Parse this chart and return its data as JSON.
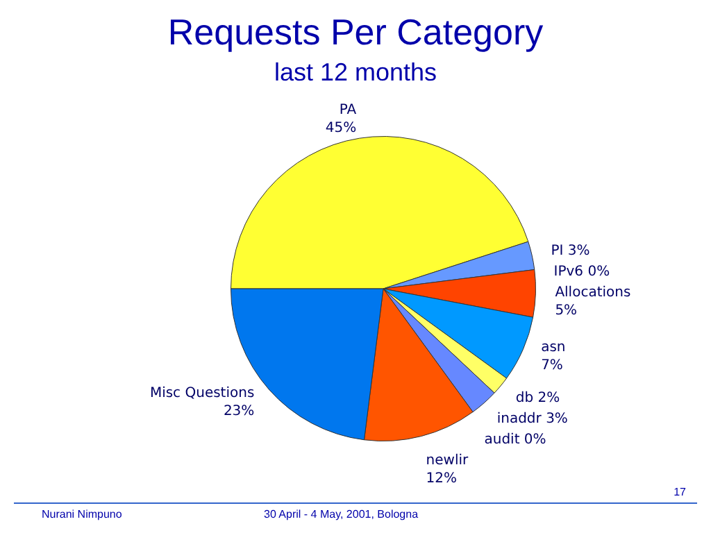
{
  "chart_data": {
    "type": "pie",
    "title": "Requests Per Category",
    "subtitle": "last 12 months",
    "categories": [
      "PA",
      "PI",
      "IPv6",
      "Allocations",
      "asn",
      "db",
      "inaddr",
      "audit",
      "newlir",
      "Misc Questions"
    ],
    "values": [
      45,
      3,
      0,
      5,
      7,
      2,
      3,
      0,
      12,
      23
    ],
    "value_labels": [
      "45%",
      "3%",
      "0%",
      "5%",
      "7%",
      "2%",
      "3%",
      "0%",
      "12%",
      "23%"
    ],
    "colors": [
      "#ffff33",
      "#6699ff",
      "#ff9900",
      "#ff4400",
      "#0099ff",
      "#ffff66",
      "#6688ff",
      "#ffcc00",
      "#ff5500",
      "#0077ee"
    ],
    "annotations": [
      "Nurani Nimpuno",
      "30 April - 4 May, 2001, Bologna",
      "17"
    ]
  }
}
